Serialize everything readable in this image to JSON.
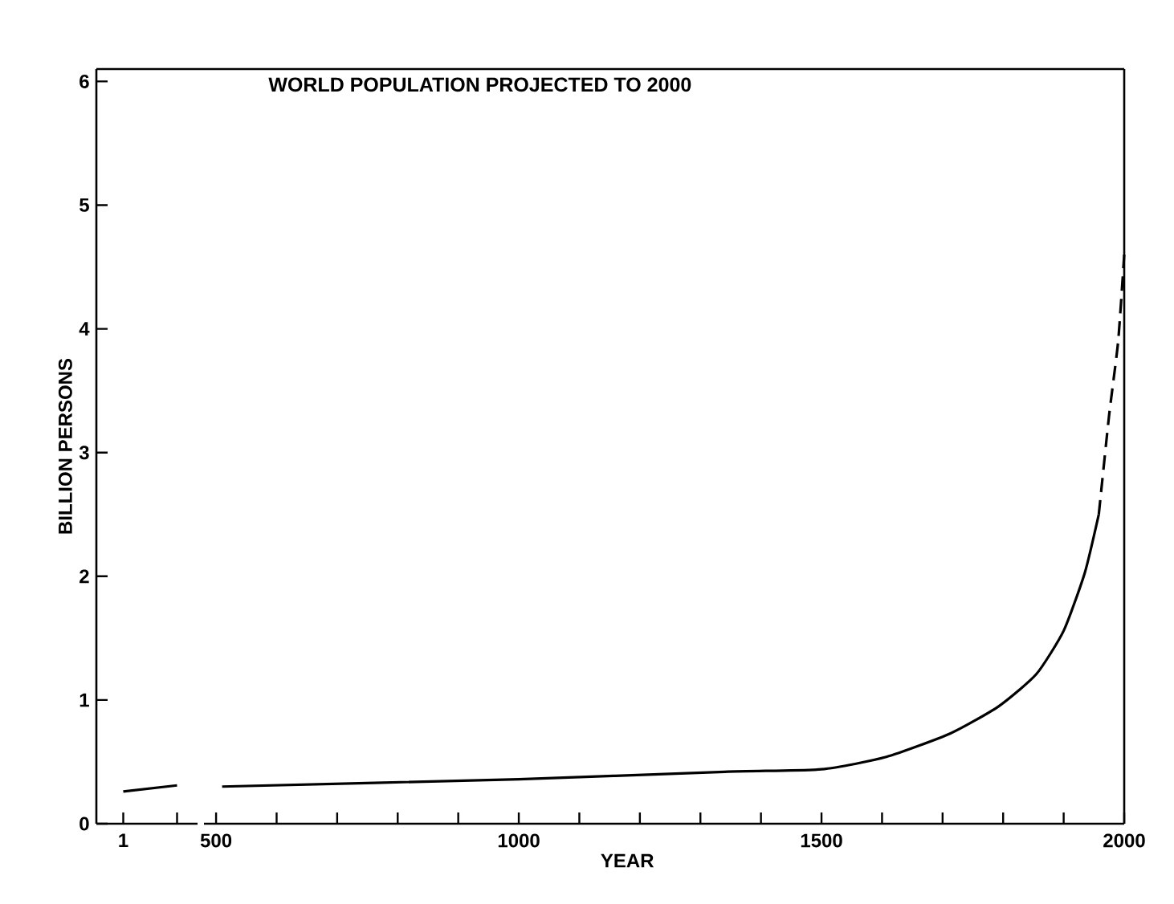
{
  "chart_data": [
    {
      "type": "line",
      "ylabel": "BILLION PERSONS",
      "categories": [
        "1",
        null
      ],
      "ylim": [
        0,
        6.1
      ],
      "yticks": [
        0,
        1,
        2,
        3,
        4,
        5,
        6
      ],
      "series": [
        {
          "color": "#000000",
          "line_style": "solid",
          "values": [
            0.26,
            0.31
          ]
        }
      ]
    },
    {
      "type": "line",
      "title": "WORLD POPULATION PROJECTED TO 2000",
      "xlabel": "YEAR",
      "xlim": [
        480,
        2000
      ],
      "ylim": [
        0,
        6.1
      ],
      "tick_labels": "x",
      "xticks": [
        500,
        {
          "value": 600,
          "label": null
        },
        {
          "value": 700,
          "label": null
        },
        {
          "value": 800,
          "label": null
        },
        {
          "value": 900,
          "label": null
        },
        1000,
        {
          "value": 1100,
          "label": null
        },
        {
          "value": 1200,
          "label": null
        },
        {
          "value": 1300,
          "label": null
        },
        {
          "value": 1400,
          "label": null
        },
        1500,
        {
          "value": 1600,
          "label": null
        },
        {
          "value": 1700,
          "label": null
        },
        {
          "value": 1800,
          "label": null
        },
        {
          "value": 1900,
          "label": null
        },
        2000
      ],
      "series": [
        {
          "color": "#000000",
          "line_style": "solid",
          "x": [
            510,
            1000,
            1340,
            1500,
            1607,
            1713,
            1793,
            1855,
            1900,
            1935,
            1958
          ],
          "values": [
            0.3,
            0.36,
            0.42,
            0.44,
            0.54,
            0.73,
            0.95,
            1.21,
            1.56,
            2.03,
            2.5
          ]
        },
        {
          "color": "#000000",
          "line_style": "dashed",
          "x": [
            1958,
            1975,
            1990,
            2000
          ],
          "values": [
            2.5,
            3.3,
            3.9,
            4.6
          ]
        }
      ]
    }
  ]
}
